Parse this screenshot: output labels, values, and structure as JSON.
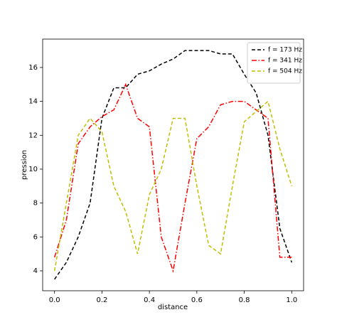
{
  "chart_data": {
    "type": "line",
    "x": [
      0,
      0.05,
      0.1,
      0.15,
      0.2,
      0.25,
      0.3,
      0.35,
      0.4,
      0.45,
      0.5,
      0.55,
      0.6,
      0.65,
      0.7,
      0.75,
      0.8,
      0.85,
      0.9,
      0.95,
      1.0
    ],
    "series": [
      {
        "name": "f = 173 Hz",
        "color": "#000000",
        "linestyle": "dashed",
        "values": [
          3.5,
          4.5,
          6,
          8,
          13,
          14.8,
          14.8,
          15.6,
          15.8,
          16.2,
          16.5,
          17,
          17,
          17,
          16.8,
          16.8,
          15.6,
          14.5,
          12,
          6.5,
          4.5
        ]
      },
      {
        "name": "f = 341 Hz",
        "color": "#ff0000",
        "linestyle": "dashdot",
        "values": [
          4.8,
          7,
          11.5,
          12.5,
          13.1,
          13.5,
          15,
          13,
          12.5,
          6,
          4,
          8,
          11.8,
          12.5,
          13.8,
          14,
          14,
          13.5,
          13,
          4.8,
          4.8
        ]
      },
      {
        "name": "f = 504 Hz",
        "color": "#bfbf00",
        "linestyle": "dashed",
        "values": [
          4,
          8,
          12,
          13,
          12.2,
          9,
          7.5,
          5,
          8.5,
          10,
          13,
          13,
          9,
          5.5,
          5,
          9,
          12.8,
          13.4,
          14,
          11.2,
          9
        ]
      }
    ],
    "xlabel": "distance",
    "ylabel": "pression",
    "xlim": [
      -0.05,
      1.05
    ],
    "ylim": [
      2.825,
      17.675
    ],
    "xticks": [
      {
        "value": 0,
        "label": "0.0"
      },
      0.2,
      0.4,
      0.6,
      0.8,
      {
        "value": 1,
        "label": "1.0"
      }
    ],
    "yticks": [
      4,
      6,
      8,
      10,
      12,
      14,
      16
    ],
    "legend": "upper right"
  }
}
